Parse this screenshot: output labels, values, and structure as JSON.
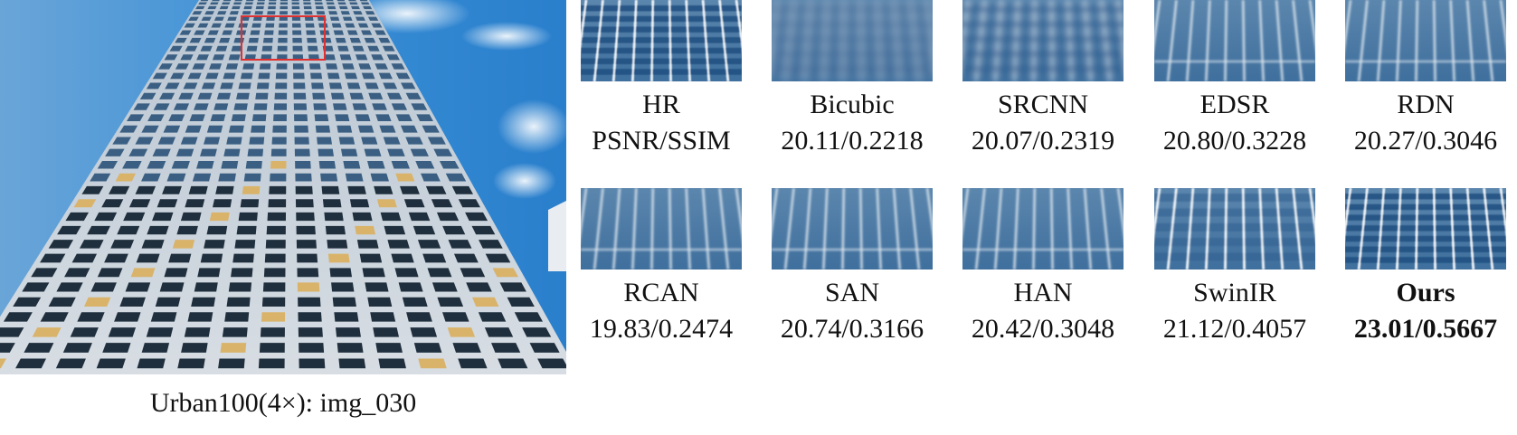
{
  "main": {
    "caption": "Urban100(4×):   img_030",
    "highlight_color": "#e03030",
    "sky_color": "#3b95da"
  },
  "patches": [
    {
      "method": "HR",
      "metric": "PSNR/SSIM",
      "quality": "sharp",
      "bold": false
    },
    {
      "method": "Bicubic",
      "metric": "20.11/0.2218",
      "quality": "very-blurry",
      "bold": false
    },
    {
      "method": "SRCNN",
      "metric": "20.07/0.2319",
      "quality": "blurry",
      "bold": false
    },
    {
      "method": "EDSR",
      "metric": "20.80/0.3228",
      "quality": "lines",
      "bold": false
    },
    {
      "method": "RDN",
      "metric": "20.27/0.3046",
      "quality": "lines",
      "bold": false
    },
    {
      "method": "RCAN",
      "metric": "19.83/0.2474",
      "quality": "lines",
      "bold": false
    },
    {
      "method": "SAN",
      "metric": "20.74/0.3166",
      "quality": "lines",
      "bold": false
    },
    {
      "method": "HAN",
      "metric": "20.42/0.3048",
      "quality": "lines",
      "bold": false
    },
    {
      "method": "SwinIR",
      "metric": "21.12/0.4057",
      "quality": "semi-sharp",
      "bold": false
    },
    {
      "method": "Ours",
      "metric": "23.01/0.5667",
      "quality": "sharp",
      "bold": true
    }
  ]
}
